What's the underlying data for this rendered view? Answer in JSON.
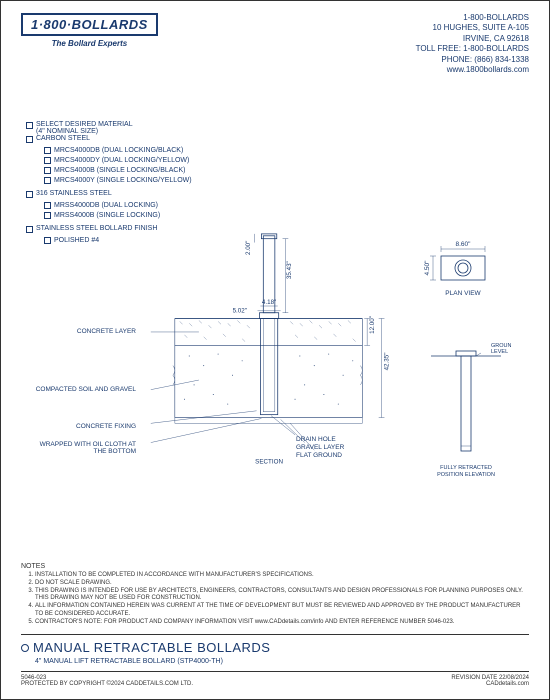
{
  "header": {
    "logo": "1·800·BOLLARDS",
    "tagline": "The Bollard Experts",
    "contact": {
      "line1": "1-800-BOLLARDS",
      "line2": "10 HUGHES, SUITE A-105",
      "line3": "IRVINE, CA 92618",
      "line4": "TOLL FREE: 1-800-BOLLARDS",
      "line5": "PHONE: (866) 834-1338",
      "line6": "www.1800bollards.com"
    }
  },
  "material": {
    "heading": "SELECT DESIRED MATERIAL",
    "subheading": "(4\" NOMINAL SIZE)",
    "groups": [
      {
        "name": "CARBON STEEL",
        "items": [
          "MRCS4000DB (DUAL LOCKING/BLACK)",
          "MRCS4000DY (DUAL LOCKING/YELLOW)",
          "MRCS4000B (SINGLE LOCKING/BLACK)",
          "MRCS4000Y (SINGLE LOCKING/YELLOW)"
        ]
      },
      {
        "name": "316 STAINLESS STEEL",
        "items": [
          "MRSS4000DB (DUAL LOCKING)",
          "MRSS4000B (SINGLE LOCKING)"
        ]
      },
      {
        "name": "STAINLESS STEEL BOLLARD FINISH",
        "items": [
          "POLISHED #4"
        ]
      }
    ]
  },
  "dimensions": {
    "plan_w": "8.60\"",
    "plan_h": "4.50\"",
    "cap_h": "2.00\"",
    "post_h": "35.43\"",
    "collar_inner": "4.18\"",
    "collar_outer": "5.02\"",
    "concrete_depth": "12.00\"",
    "total_depth": "42.35\""
  },
  "callouts": {
    "concrete_layer": "CONCRETE LAYER",
    "compacted": "COMPACTED SOIL AND GRAVEL",
    "concrete_fixing": "CONCRETE FIXING",
    "wrapped": "WRAPPED WITH OIL CLOTH AT THE BOTTOM",
    "drain": "DRAIN HOLE",
    "gravel": "GRAVEL LAYER",
    "flat": "FLAT GROUND",
    "section": "SECTION",
    "plan_view": "PLAN VIEW",
    "ground_level": "GROUND LEVEL",
    "retracted": "FULLY RETRACTED POSITION ELEVATION"
  },
  "notes": {
    "heading": "NOTES",
    "items": [
      "INSTALLATION TO BE COMPLETED IN ACCORDANCE WITH MANUFACTURER'S SPECIFICATIONS.",
      "DO NOT SCALE DRAWING.",
      "THIS DRAWING IS INTENDED FOR USE BY ARCHITECTS, ENGINEERS, CONTRACTORS, CONSULTANTS AND DESIGN PROFESSIONALS FOR PLANNING PURPOSES ONLY. THIS DRAWING MAY NOT BE USED FOR CONSTRUCTION.",
      "ALL INFORMATION CONTAINED HEREIN WAS CURRENT AT THE TIME OF DEVELOPMENT BUT MUST BE REVIEWED AND APPROVED BY THE PRODUCT MANUFACTURER TO BE CONSIDERED ACCURATE.",
      "CONTRACTOR'S NOTE: FOR PRODUCT AND COMPANY INFORMATION VISIT www.CADdetails.com/info AND ENTER REFERENCE NUMBER 5046-023."
    ]
  },
  "title": {
    "main": "MANUAL RETRACTABLE BOLLARDS",
    "sub": "4\" MANUAL LIFT RETRACTABLE BOLLARD (STP4000-TH)"
  },
  "footer": {
    "ref": "5046-023",
    "copyright": "PROTECTED BY COPYRIGHT ©2024 CADDETAILS.COM LTD.",
    "revision": "REVISION DATE 22/08/2024",
    "source": "CADdetails.com"
  },
  "colors": {
    "primary": "#1a3a6e",
    "border": "#333333",
    "bg": "#ffffff"
  }
}
